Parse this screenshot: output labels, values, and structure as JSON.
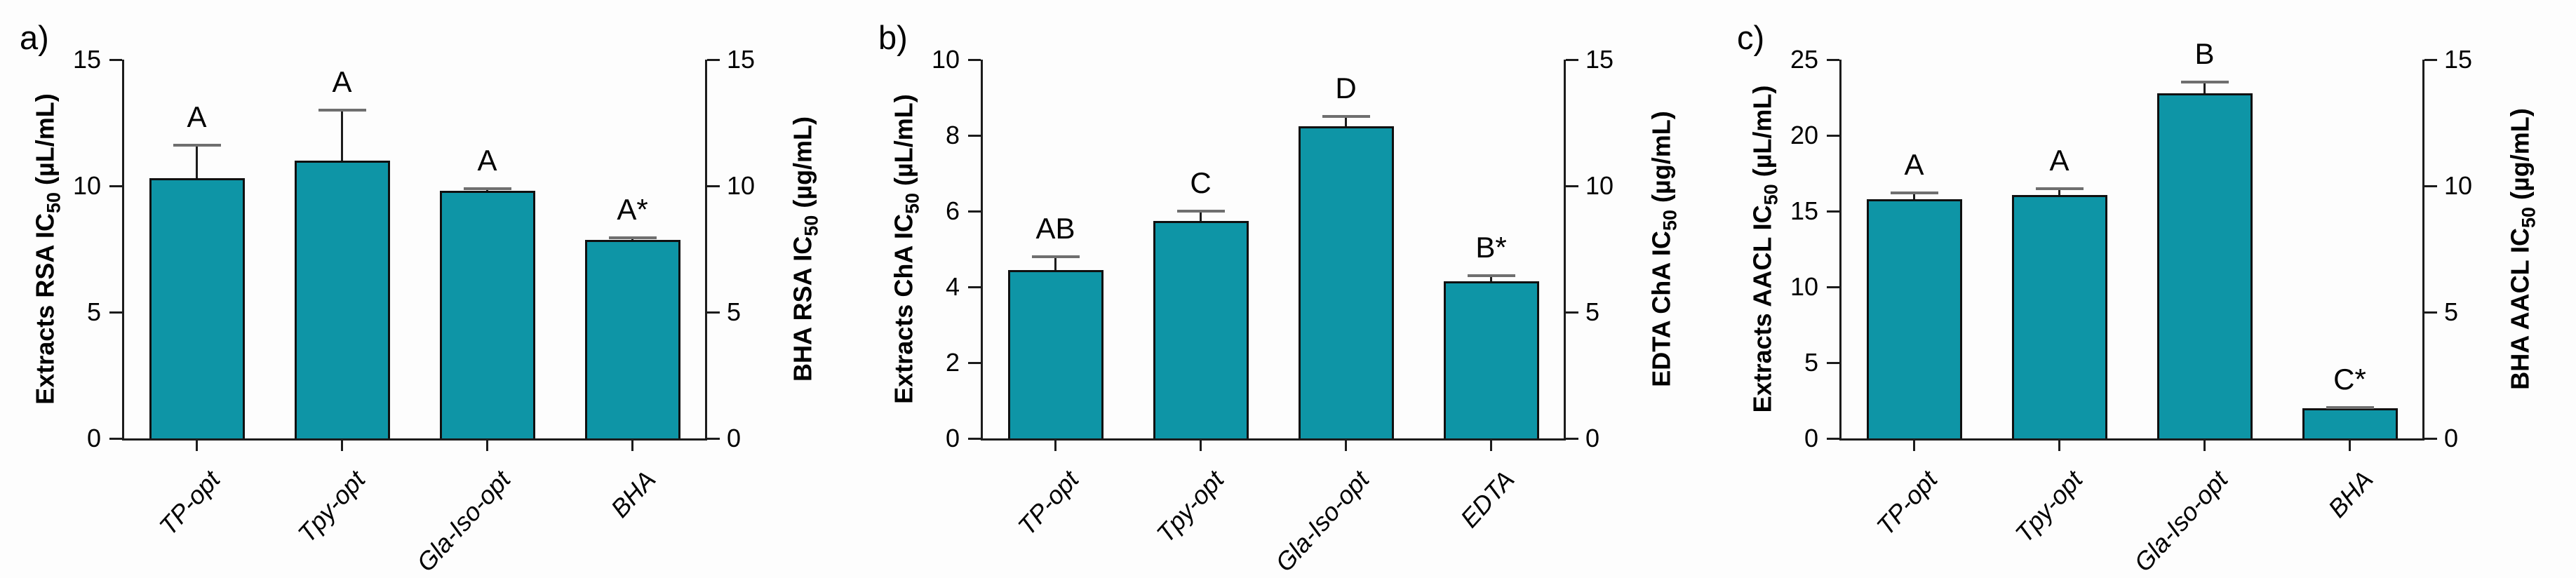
{
  "colors": {
    "bar_fill": "#0e95a6",
    "bar_border": "#101010",
    "axis": "#1c1c1c",
    "error_cap": "#6f6f6f",
    "background": "#fdfdfd",
    "text": "#000000"
  },
  "chart_data": [
    {
      "type": "bar",
      "panel_label": "a)",
      "categories": [
        "TP-opt",
        "Tpy-opt",
        "Gla-Iso-opt",
        "BHA"
      ],
      "values": [
        10.3,
        11.0,
        9.8,
        7.85
      ],
      "errors": [
        1.3,
        2.0,
        0.1,
        0.1
      ],
      "significance_letters": [
        "A",
        "A",
        "A",
        "A*"
      ],
      "left_axis": {
        "label_pre": "Extracts RSA IC",
        "label_sub": "50",
        "label_post": " (µL/mL)",
        "min": 0,
        "max": 15,
        "ticks": [
          0,
          5,
          10,
          15
        ]
      },
      "right_axis": {
        "label_pre": "BHA RSA IC",
        "label_sub": "50",
        "label_post": " (µg/mL)",
        "min": 0,
        "max": 15,
        "ticks": [
          0,
          5,
          10,
          15
        ]
      },
      "last_bar_right_axis_value": 7.85,
      "grid": false,
      "legend": "none"
    },
    {
      "type": "bar",
      "panel_label": "b)",
      "categories": [
        "TP-opt",
        "Tpy-opt",
        "Gla-Iso-opt",
        "EDTA"
      ],
      "values": [
        4.45,
        5.75,
        8.25,
        4.15
      ],
      "errors": [
        0.35,
        0.25,
        0.25,
        0.15
      ],
      "significance_letters": [
        "AB",
        "C",
        "D",
        "B*"
      ],
      "left_axis": {
        "label_pre": "Extracts ChA IC",
        "label_sub": "50",
        "label_post": " (µL/mL)",
        "min": 0,
        "max": 10,
        "ticks": [
          0,
          2,
          4,
          6,
          8,
          10
        ]
      },
      "right_axis": {
        "label_pre": "EDTA ChA IC",
        "label_sub": "50",
        "label_post": " (µg/mL)",
        "min": 0,
        "max": 15,
        "ticks": [
          0,
          5,
          10,
          15
        ]
      },
      "last_bar_right_axis_value": 6.2,
      "grid": false,
      "legend": "none"
    },
    {
      "type": "bar",
      "panel_label": "c)",
      "categories": [
        "TP-opt",
        "Tpy-opt",
        "Gla-Iso-opt",
        "BHA"
      ],
      "values": [
        15.8,
        16.05,
        22.8,
        2.0
      ],
      "errors": [
        0.4,
        0.45,
        0.7,
        0.05
      ],
      "significance_letters": [
        "A",
        "A",
        "B",
        "C*"
      ],
      "left_axis": {
        "label_pre": "Extracts AACL IC",
        "label_sub": "50",
        "label_post": " (µL/mL)",
        "min": 0,
        "max": 25,
        "ticks": [
          0,
          5,
          10,
          15,
          20,
          25
        ]
      },
      "right_axis": {
        "label_pre": "BHA AACL IC",
        "label_sub": "50",
        "label_post": " (µg/mL)",
        "min": 0,
        "max": 15,
        "ticks": [
          0,
          5,
          10,
          15
        ]
      },
      "last_bar_right_axis_value": 1.2,
      "grid": false,
      "legend": "none"
    }
  ]
}
